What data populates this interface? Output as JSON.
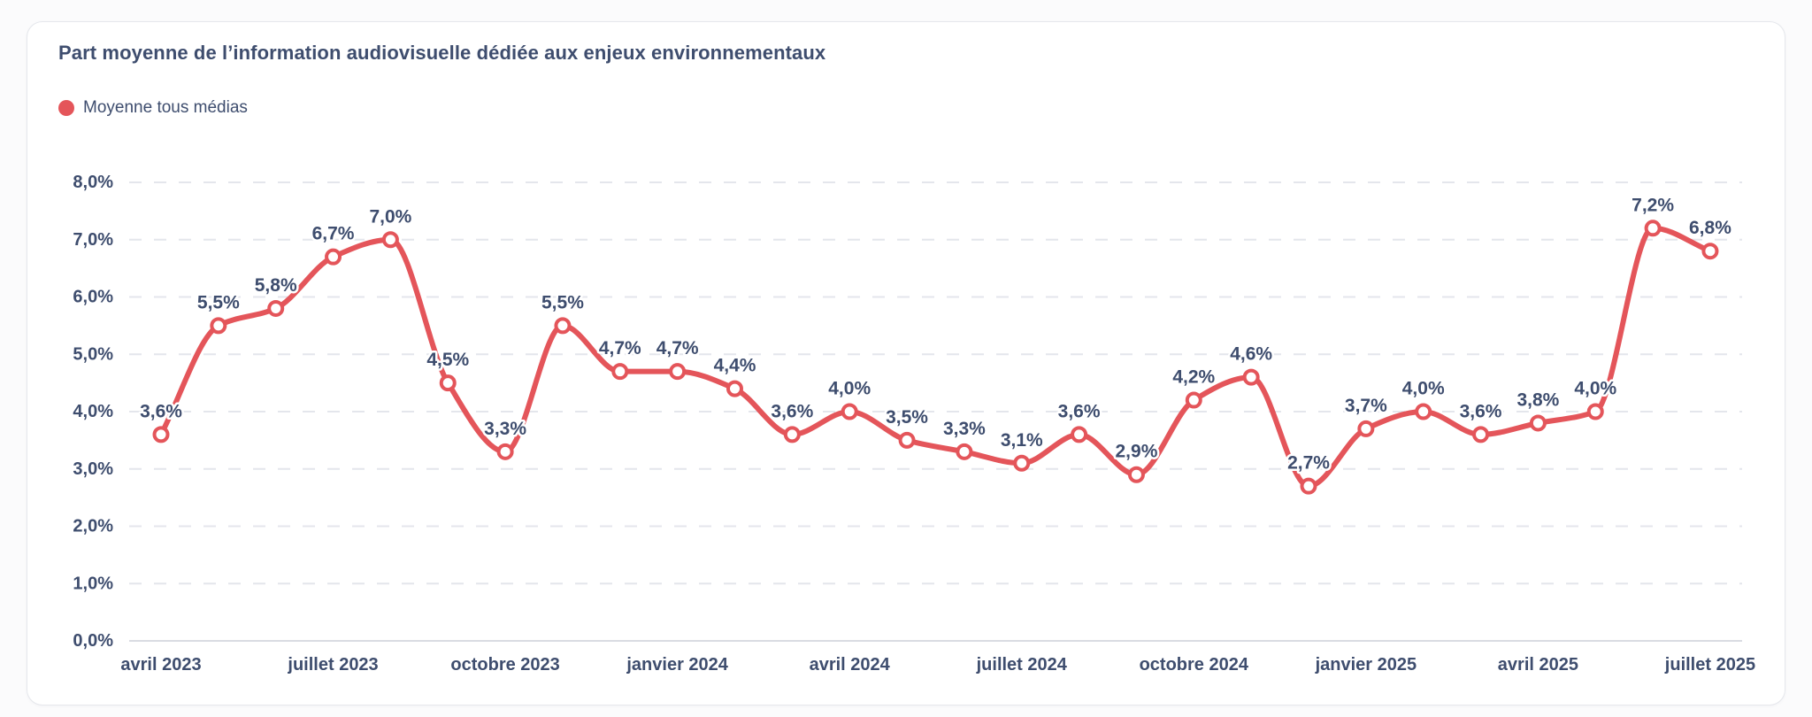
{
  "card": {
    "title": "Part moyenne de l’information audiovisuelle dédiée aux enjeux environnementaux"
  },
  "legend": {
    "items": [
      {
        "label": "Moyenne tous médias",
        "marker": "circle-icon",
        "color": "#e4555a"
      }
    ]
  },
  "colors": {
    "series_red": "#e4555a",
    "text_navy": "#3e4d6e",
    "gridline": "#e4e6ec",
    "baseline": "#d9dce2",
    "card_background": "#ffffff",
    "page_background": "#fbfbfc"
  },
  "chart_data": {
    "type": "line",
    "title": "Part moyenne de l’information audiovisuelle dédiée aux enjeux environnementaux",
    "legend_position": "top-left",
    "grid": "horizontal dashed",
    "x_unit": "month",
    "x_range": [
      "avril 2023",
      "juillet 2025"
    ],
    "x_tick_labels": [
      "avril 2023",
      "juillet 2023",
      "octobre 2023",
      "janvier 2024",
      "avril 2024",
      "juillet 2024",
      "octobre 2024",
      "janvier 2025",
      "avril 2025",
      "juillet 2025"
    ],
    "x_tick_point_indices": [
      0,
      3,
      6,
      9,
      12,
      15,
      18,
      21,
      24,
      27
    ],
    "y_label": "",
    "ylim": [
      0,
      8
    ],
    "y_tick_labels": [
      "0,0%",
      "1,0%",
      "2,0%",
      "3,0%",
      "4,0%",
      "5,0%",
      "6,0%",
      "7,0%",
      "8,0%"
    ],
    "series": [
      {
        "name": "Moyenne tous médias",
        "color": "#e4555a",
        "values": [
          3.6,
          5.5,
          5.8,
          6.7,
          7.0,
          4.5,
          3.3,
          5.5,
          4.7,
          4.7,
          4.4,
          3.6,
          4.0,
          3.5,
          3.3,
          3.1,
          3.6,
          2.9,
          4.2,
          4.6,
          2.7,
          3.7,
          4.0,
          3.6,
          3.8,
          4.0,
          7.2,
          6.8
        ],
        "value_labels": [
          "3,6%",
          "5,5%",
          "5,8%",
          "6,7%",
          "7,0%",
          "4,5%",
          "3,3%",
          "5,5%",
          "4,7%",
          "4,7%",
          "4,4%",
          "3,6%",
          "4,0%",
          "3,5%",
          "3,3%",
          "3,1%",
          "3,6%",
          "2,9%",
          "4,2%",
          "4,6%",
          "2,7%",
          "3,7%",
          "4,0%",
          "3,6%",
          "3,8%",
          "4,0%",
          "7,2%",
          "6,8%"
        ]
      }
    ]
  }
}
